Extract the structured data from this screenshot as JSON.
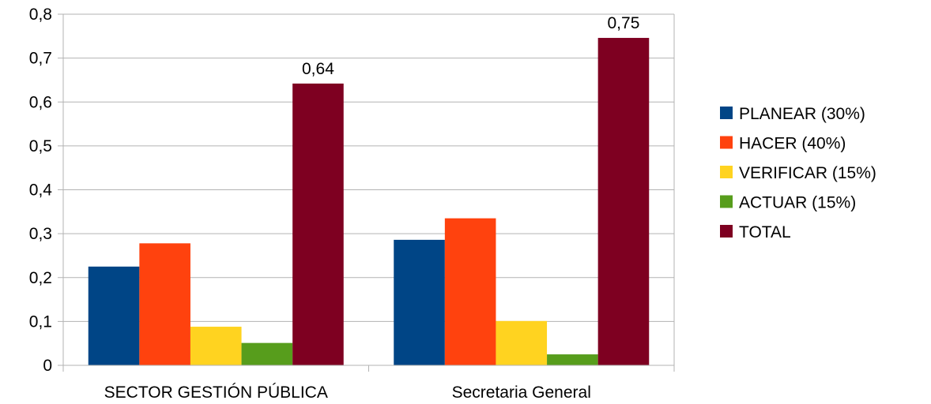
{
  "chart_data": {
    "type": "bar",
    "title": "",
    "xlabel": "",
    "ylabel": "",
    "ylim": [
      0,
      0.8
    ],
    "yticks": [
      "0",
      "0,1",
      "0,2",
      "0,3",
      "0,4",
      "0,5",
      "0,6",
      "0,7",
      "0,8"
    ],
    "grid": true,
    "legend_position": "right",
    "categories": [
      "SECTOR GESTIÓN PÚBLICA",
      "Secretaria General"
    ],
    "series": [
      {
        "name": "PLANEAR (30%)",
        "color": "#004586",
        "values": [
          0.225,
          0.286
        ],
        "labels": [
          "",
          ""
        ]
      },
      {
        "name": "HACER (40%)",
        "color": "#ff420e",
        "values": [
          0.278,
          0.335
        ],
        "labels": [
          "",
          ""
        ]
      },
      {
        "name": "VERIFICAR (15%)",
        "color": "#ffd320",
        "values": [
          0.088,
          0.101
        ],
        "labels": [
          "",
          ""
        ]
      },
      {
        "name": "ACTUAR (15%)",
        "color": "#579d1c",
        "values": [
          0.051,
          0.025
        ],
        "labels": [
          "",
          ""
        ]
      },
      {
        "name": "TOTAL",
        "color": "#7e0021",
        "values": [
          0.642,
          0.746
        ],
        "labels": [
          "0,64",
          "0,75"
        ]
      }
    ]
  }
}
